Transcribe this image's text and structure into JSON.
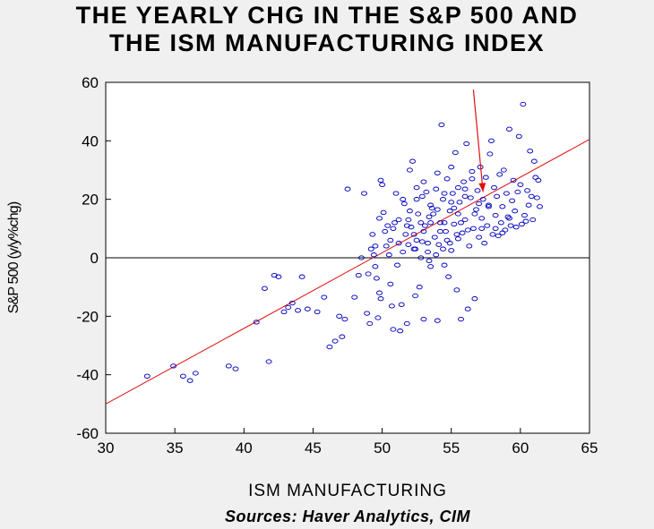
{
  "title_lines": [
    "THE YEARLY CHG IN THE S&P 500 AND",
    "THE ISM MANUFACTURING INDEX"
  ],
  "source": "Sources: Haver Analytics, CIM",
  "colors": {
    "points": "#0000bb",
    "fit_line": "#e01010",
    "arrow": "#e01010",
    "zero_line": "#000000",
    "plot_bg": "#ffffff",
    "page_bg": "#f0f0f0"
  },
  "chart_data": {
    "type": "scatter",
    "title": "THE YEARLY CHG IN THE S&P 500 AND THE ISM MANUFACTURING INDEX",
    "xlabel": "ISM MANUFACTURING",
    "ylabel": "S&P 500 (y/y%chg)",
    "xlim": [
      30,
      65
    ],
    "ylim": [
      -60,
      60
    ],
    "xticks": [
      30,
      35,
      40,
      45,
      50,
      55,
      60,
      65
    ],
    "yticks": [
      -60,
      -40,
      -20,
      0,
      20,
      40,
      60
    ],
    "grid": false,
    "zero_line": true,
    "regression_line": {
      "x": [
        30,
        65
      ],
      "y": [
        -50,
        40.5
      ]
    },
    "arrow": {
      "from": [
        56.6,
        57.5
      ],
      "to": [
        57.3,
        22.5
      ]
    },
    "points": [
      [
        33.0,
        -40.5
      ],
      [
        34.9,
        -37
      ],
      [
        35.6,
        -40.5
      ],
      [
        36.1,
        -42
      ],
      [
        36.5,
        -39.5
      ],
      [
        38.9,
        -37
      ],
      [
        39.4,
        -38
      ],
      [
        40.9,
        -22
      ],
      [
        41.5,
        -10.5
      ],
      [
        41.8,
        -35.5
      ],
      [
        42.2,
        -6
      ],
      [
        42.5,
        -6.5
      ],
      [
        42.9,
        -18.5
      ],
      [
        43.2,
        -17
      ],
      [
        43.5,
        -15.5
      ],
      [
        43.9,
        -18
      ],
      [
        44.2,
        -6.5
      ],
      [
        44.6,
        -17.5
      ],
      [
        45.3,
        -18.5
      ],
      [
        45.8,
        -13.5
      ],
      [
        46.2,
        -30.5
      ],
      [
        46.6,
        -28.5
      ],
      [
        46.9,
        -20
      ],
      [
        47.1,
        -27
      ],
      [
        47.3,
        -21
      ],
      [
        47.5,
        23.5
      ],
      [
        48.0,
        -13.5
      ],
      [
        48.3,
        -6
      ],
      [
        48.5,
        0
      ],
      [
        48.7,
        22
      ],
      [
        48.9,
        -19
      ],
      [
        49.0,
        -5.5
      ],
      [
        49.1,
        -22.5
      ],
      [
        49.2,
        3
      ],
      [
        49.3,
        8
      ],
      [
        49.4,
        1
      ],
      [
        49.5,
        -3
      ],
      [
        49.6,
        -7
      ],
      [
        49.7,
        -20.5
      ],
      [
        49.8,
        -12
      ],
      [
        49.9,
        -14
      ],
      [
        49.8,
        13.5
      ],
      [
        49.9,
        26.5
      ],
      [
        50.0,
        25
      ],
      [
        50.1,
        15.5
      ],
      [
        50.3,
        4
      ],
      [
        50.4,
        11
      ],
      [
        50.5,
        1
      ],
      [
        50.6,
        -9
      ],
      [
        50.7,
        -16.5
      ],
      [
        50.8,
        -24.5
      ],
      [
        50.9,
        12
      ],
      [
        51.0,
        22
      ],
      [
        51.1,
        -2.5
      ],
      [
        51.3,
        -25
      ],
      [
        51.4,
        -16
      ],
      [
        51.5,
        2
      ],
      [
        51.6,
        18.5
      ],
      [
        51.7,
        8
      ],
      [
        51.8,
        -22.5
      ],
      [
        51.9,
        13
      ],
      [
        52.0,
        30
      ],
      [
        52.1,
        10.5
      ],
      [
        52.2,
        33
      ],
      [
        52.3,
        3
      ],
      [
        52.4,
        -13
      ],
      [
        52.5,
        6
      ],
      [
        52.6,
        15
      ],
      [
        52.7,
        -10
      ],
      [
        52.8,
        0
      ],
      [
        52.9,
        21
      ],
      [
        53.0,
        -21
      ],
      [
        53.1,
        11
      ],
      [
        53.2,
        22.5
      ],
      [
        53.3,
        2
      ],
      [
        53.4,
        14
      ],
      [
        53.5,
        -3
      ],
      [
        53.6,
        17
      ],
      [
        53.8,
        7
      ],
      [
        53.9,
        23.5
      ],
      [
        54.0,
        -21.5
      ],
      [
        54.1,
        4.5
      ],
      [
        54.2,
        12
      ],
      [
        54.3,
        45.5
      ],
      [
        54.4,
        20
      ],
      [
        54.5,
        -2.5
      ],
      [
        54.6,
        9
      ],
      [
        54.7,
        27
      ],
      [
        54.8,
        -6.5
      ],
      [
        54.9,
        16
      ],
      [
        55.0,
        2.5
      ],
      [
        55.1,
        22
      ],
      [
        55.2,
        11.5
      ],
      [
        55.3,
        36
      ],
      [
        55.4,
        -11
      ],
      [
        55.5,
        6.5
      ],
      [
        55.6,
        19
      ],
      [
        55.7,
        -21
      ],
      [
        55.8,
        8.5
      ],
      [
        55.9,
        26
      ],
      [
        56.0,
        13
      ],
      [
        56.1,
        39
      ],
      [
        56.2,
        -17.5
      ],
      [
        56.3,
        4
      ],
      [
        56.4,
        20.5
      ],
      [
        56.5,
        29.5
      ],
      [
        56.6,
        10
      ],
      [
        56.7,
        -14
      ],
      [
        56.8,
        16.5
      ],
      [
        56.9,
        23
      ],
      [
        57.0,
        7
      ],
      [
        57.1,
        31
      ],
      [
        57.2,
        13.5
      ],
      [
        57.3,
        20
      ],
      [
        57.4,
        5
      ],
      [
        57.5,
        27.5
      ],
      [
        57.6,
        11
      ],
      [
        57.7,
        18
      ],
      [
        57.8,
        35.5
      ],
      [
        57.9,
        40
      ],
      [
        58.0,
        8
      ],
      [
        58.1,
        24
      ],
      [
        58.2,
        14.5
      ],
      [
        58.3,
        21
      ],
      [
        58.4,
        7.5
      ],
      [
        58.5,
        28.5
      ],
      [
        58.6,
        12
      ],
      [
        58.7,
        17.5
      ],
      [
        58.8,
        30
      ],
      [
        58.9,
        9.5
      ],
      [
        59.0,
        22
      ],
      [
        59.1,
        14
      ],
      [
        59.2,
        44
      ],
      [
        59.3,
        11
      ],
      [
        59.4,
        19.5
      ],
      [
        59.5,
        26.5
      ],
      [
        59.6,
        16
      ],
      [
        59.7,
        10.5
      ],
      [
        59.8,
        22.5
      ],
      [
        59.9,
        41.5
      ],
      [
        60.0,
        25
      ],
      [
        60.1,
        11.5
      ],
      [
        60.2,
        52.5
      ],
      [
        60.3,
        14.5
      ],
      [
        60.4,
        12.5
      ],
      [
        60.5,
        23
      ],
      [
        60.6,
        18
      ],
      [
        60.7,
        36.5
      ],
      [
        60.8,
        21
      ],
      [
        60.9,
        13
      ],
      [
        61.0,
        33
      ],
      [
        61.1,
        27.5
      ],
      [
        61.2,
        20.5
      ],
      [
        61.3,
        26.5
      ],
      [
        61.4,
        17.5
      ],
      [
        49.5,
        4
      ],
      [
        50.2,
        9
      ],
      [
        50.6,
        6
      ],
      [
        51.2,
        13
      ],
      [
        51.9,
        4.5
      ],
      [
        52.3,
        8
      ],
      [
        52.8,
        12
      ],
      [
        53.3,
        5
      ],
      [
        53.7,
        15
      ],
      [
        54.2,
        9
      ],
      [
        54.7,
        6
      ],
      [
        55.2,
        17
      ],
      [
        55.7,
        12
      ],
      [
        56.2,
        9.5
      ],
      [
        56.7,
        15
      ],
      [
        57.2,
        10
      ],
      [
        57.7,
        17.5
      ],
      [
        58.2,
        10
      ],
      [
        58.7,
        8.5
      ],
      [
        59.2,
        13.5
      ],
      [
        52.5,
        20
      ],
      [
        53.0,
        26
      ],
      [
        53.5,
        18
      ],
      [
        54.0,
        29
      ],
      [
        54.5,
        22
      ],
      [
        55.0,
        31
      ],
      [
        55.5,
        24
      ],
      [
        56.0,
        21
      ],
      [
        56.5,
        27
      ],
      [
        57.0,
        18.5
      ],
      [
        51.5,
        20
      ],
      [
        52.0,
        16
      ],
      [
        52.5,
        24
      ],
      [
        53.0,
        9
      ],
      [
        53.5,
        12
      ],
      [
        54.0,
        16.5
      ],
      [
        54.5,
        12
      ],
      [
        55.0,
        19
      ],
      [
        55.5,
        15
      ],
      [
        56.0,
        23.5
      ],
      [
        50.8,
        10
      ],
      [
        51.2,
        5
      ],
      [
        51.8,
        11
      ],
      [
        52.4,
        3
      ],
      [
        52.9,
        5.5
      ],
      [
        53.4,
        -1
      ],
      [
        53.9,
        1
      ],
      [
        54.4,
        3
      ],
      [
        54.9,
        5
      ],
      [
        55.4,
        8
      ]
    ]
  }
}
